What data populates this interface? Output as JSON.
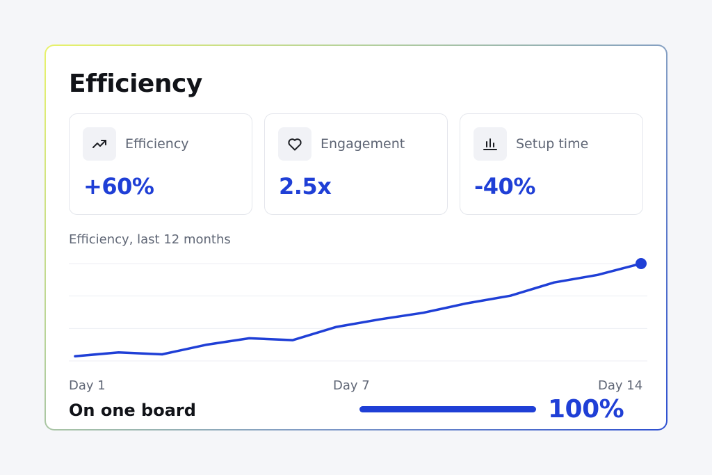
{
  "card": {
    "title": "Efficiency",
    "stats": [
      {
        "icon": "trending-up-icon",
        "label": "Efficiency",
        "value": "+60%"
      },
      {
        "icon": "heart-icon",
        "label": "Engagement",
        "value": "2.5x"
      },
      {
        "icon": "bar-chart-icon",
        "label": "Setup time",
        "value": "-40%"
      }
    ],
    "chart_caption": "Efficiency, last 12 months",
    "footer": {
      "label": "On one board",
      "progress_value": "100%",
      "progress_fraction": 1.0
    }
  },
  "colors": {
    "accent": "#1f3fd6",
    "gridline": "#eceef3",
    "text_muted": "#5f6675",
    "text_dark": "#111318"
  },
  "chart_data": {
    "type": "line",
    "title": "",
    "xlabel": "",
    "ylabel": "",
    "x_tick_labels": [
      "Day 1",
      "Day 7",
      "Day 14"
    ],
    "x_tick_positions": [
      1,
      7,
      14
    ],
    "x": [
      1,
      2,
      3,
      4,
      5,
      6,
      7,
      8,
      9,
      10,
      11,
      12,
      13,
      14
    ],
    "series": [
      {
        "values": [
          2,
          6,
          4,
          14,
          21,
          19,
          33,
          41,
          48,
          58,
          66,
          80,
          88,
          100
        ]
      }
    ],
    "ylim": [
      -3,
      100
    ],
    "grid": true,
    "gridlines": 4,
    "highlight_last_point": true
  }
}
